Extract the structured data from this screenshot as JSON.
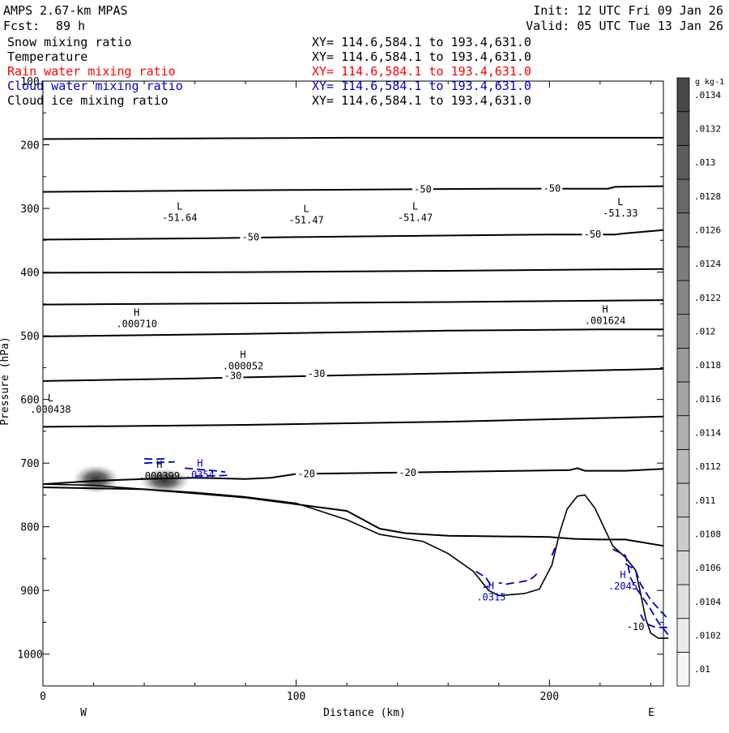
{
  "header": {
    "title": "AMPS 2.67-km MPAS",
    "fcst_label": "Fcst:",
    "fcst_value": "89 h",
    "init": "Init: 12 UTC Fri 09 Jan 26",
    "valid": "Valid: 05 UTC Tue 13 Jan 26"
  },
  "fields": [
    {
      "name": "Snow mixing ratio",
      "xy": "XY= 114.6,584.1 to 193.4,631.0",
      "color": "#000000"
    },
    {
      "name": "Temperature",
      "xy": "XY= 114.6,584.1 to 193.4,631.0",
      "color": "#000000"
    },
    {
      "name": "Rain water mixing ratio",
      "xy": "XY= 114.6,584.1 to 193.4,631.0",
      "color": "#ff0000"
    },
    {
      "name": "Cloud water mixing ratio",
      "xy": "XY= 114.6,584.1 to 193.4,631.0",
      "color": "#0000cc"
    },
    {
      "name": "Cloud ice mixing ratio",
      "xy": "XY= 114.6,584.1 to 193.4,631.0",
      "color": "#000000"
    }
  ],
  "chart_data": {
    "type": "cross-section",
    "xlabel": "Distance (km)",
    "ylabel": "Pressure (hPa)",
    "xlim": [
      0,
      245
    ],
    "ylim": [
      1050,
      100
    ],
    "x_ticks": [
      0,
      100,
      200
    ],
    "y_ticks": [
      100,
      200,
      300,
      400,
      500,
      600,
      700,
      800,
      900,
      1000
    ],
    "x_ends": {
      "left": "W",
      "right": "E"
    },
    "colorbar": {
      "unit": "g kg-1",
      "levels": [
        ".01",
        ".0102",
        ".0104",
        ".0106",
        ".0108",
        ".011",
        ".0112",
        ".0114",
        ".0116",
        ".0118",
        ".012",
        ".0122",
        ".0124",
        ".0126",
        ".0128",
        ".013",
        ".0132",
        ".0134"
      ]
    },
    "temperature_isotherms": [
      {
        "points": [
          [
            0,
            191
          ],
          [
            60,
            190
          ],
          [
            120,
            189
          ],
          [
            180,
            189
          ],
          [
            245,
            189
          ]
        ]
      },
      {
        "points": [
          [
            0,
            274
          ],
          [
            60,
            272
          ],
          [
            100,
            271
          ],
          [
            140,
            270
          ],
          [
            180,
            269
          ],
          [
            223,
            269
          ],
          [
            226,
            266
          ],
          [
            245,
            265
          ]
        ]
      },
      {
        "points": [
          [
            0,
            349
          ],
          [
            60,
            347
          ],
          [
            100,
            345
          ],
          [
            150,
            343
          ],
          [
            200,
            341
          ],
          [
            226,
            341
          ],
          [
            230,
            339
          ],
          [
            245,
            334
          ]
        ]
      },
      {
        "points": [
          [
            0,
            401
          ],
          [
            80,
            400
          ],
          [
            160,
            398
          ],
          [
            245,
            395
          ]
        ]
      },
      {
        "points": [
          [
            0,
            451
          ],
          [
            80,
            449
          ],
          [
            160,
            447
          ],
          [
            245,
            444
          ]
        ]
      },
      {
        "points": [
          [
            0,
            501
          ],
          [
            80,
            497
          ],
          [
            160,
            492
          ],
          [
            220,
            490
          ],
          [
            245,
            490
          ]
        ]
      },
      {
        "points": [
          [
            0,
            571
          ],
          [
            60,
            567
          ],
          [
            120,
            562
          ],
          [
            200,
            556
          ],
          [
            245,
            552
          ]
        ]
      },
      {
        "points": [
          [
            0,
            643
          ],
          [
            80,
            640
          ],
          [
            160,
            635
          ],
          [
            245,
            627
          ]
        ]
      },
      {
        "points": [
          [
            0,
            733
          ],
          [
            20,
            728
          ],
          [
            40,
            725
          ],
          [
            60,
            723
          ],
          [
            80,
            725
          ],
          [
            90,
            723
          ],
          [
            100,
            717
          ],
          [
            140,
            715
          ],
          [
            190,
            712
          ],
          [
            208,
            711
          ],
          [
            211,
            708
          ],
          [
            214,
            712
          ],
          [
            230,
            712
          ],
          [
            245,
            709
          ]
        ]
      },
      {
        "points": [
          [
            0,
            738
          ],
          [
            40,
            741
          ],
          [
            80,
            754
          ],
          [
            120,
            775
          ],
          [
            133,
            803
          ],
          [
            143,
            810
          ],
          [
            160,
            814
          ],
          [
            200,
            816
          ],
          [
            210,
            819
          ],
          [
            220,
            820
          ],
          [
            230,
            820
          ],
          [
            245,
            830
          ]
        ]
      }
    ],
    "isotherm_labels": [
      {
        "text": "-50",
        "x": 150,
        "p": 270
      },
      {
        "text": "-50",
        "x": 201,
        "p": 269
      },
      {
        "text": "-50",
        "x": 82,
        "p": 345
      },
      {
        "text": "-50",
        "x": 217,
        "p": 341
      },
      {
        "text": "-30",
        "x": 75,
        "p": 563
      },
      {
        "text": "-30",
        "x": 108,
        "p": 560
      },
      {
        "text": "-20",
        "x": 104,
        "p": 717
      },
      {
        "text": "-20",
        "x": 144,
        "p": 715
      },
      {
        "text": "-10",
        "x": 234,
        "p": 957
      }
    ],
    "extrema_labels": [
      {
        "kind": "L",
        "value": "-51.64",
        "x": 54,
        "p": 317
      },
      {
        "kind": "L",
        "value": "-51.47",
        "x": 104,
        "p": 321
      },
      {
        "kind": "L",
        "value": "-51.47",
        "x": 147,
        "p": 317
      },
      {
        "kind": "L",
        "value": "-51.33",
        "x": 228,
        "p": 310
      },
      {
        "kind": "H",
        "value": ".000710",
        "x": 37,
        "p": 484
      },
      {
        "kind": "H",
        "value": ".001624",
        "x": 222,
        "p": 479
      },
      {
        "kind": "H",
        "value": ".000052",
        "x": 79,
        "p": 550
      },
      {
        "kind": "L",
        "value": ".000438",
        "x": 3,
        "p": 618
      },
      {
        "kind": "H",
        "value": ".000399",
        "x": 46,
        "p": 723
      },
      {
        "kind": "H",
        "value": ".0354",
        "x": 62,
        "p": 721,
        "color": "#0000cc"
      },
      {
        "kind": "H",
        "value": ".0315",
        "x": 177,
        "p": 913,
        "color": "#0000cc"
      },
      {
        "kind": "H",
        "value": ".2045",
        "x": 229,
        "p": 896,
        "color": "#0000cc"
      }
    ],
    "terrain": [
      [
        0,
        733
      ],
      [
        20,
        735
      ],
      [
        40,
        741
      ],
      [
        60,
        746
      ],
      [
        80,
        753
      ],
      [
        100,
        763
      ],
      [
        120,
        789
      ],
      [
        133,
        812
      ],
      [
        150,
        823
      ],
      [
        160,
        842
      ],
      [
        170,
        870
      ],
      [
        176,
        900
      ],
      [
        180,
        908
      ],
      [
        190,
        905
      ],
      [
        196,
        898
      ],
      [
        201,
        860
      ],
      [
        204,
        810
      ],
      [
        207,
        772
      ],
      [
        211,
        752
      ],
      [
        214,
        750
      ],
      [
        218,
        771
      ],
      [
        222,
        805
      ],
      [
        225,
        830
      ],
      [
        230,
        848
      ],
      [
        234,
        868
      ],
      [
        236,
        905
      ],
      [
        238,
        944
      ],
      [
        240,
        967
      ],
      [
        243,
        975
      ],
      [
        247,
        975
      ]
    ],
    "cloud_water_contours": [
      {
        "points": [
          [
            40,
            693
          ],
          [
            44,
            694
          ],
          [
            48,
            693
          ]
        ]
      },
      {
        "points": [
          [
            40,
            700
          ],
          [
            46,
            699
          ],
          [
            52,
            698
          ]
        ]
      },
      {
        "points": [
          [
            56,
            708
          ],
          [
            62,
            710
          ],
          [
            68,
            712
          ],
          [
            72,
            714
          ]
        ]
      },
      {
        "points": [
          [
            60,
            720
          ],
          [
            68,
            720
          ],
          [
            74,
            719
          ]
        ]
      },
      {
        "points": [
          [
            171,
            870
          ],
          [
            175,
            880
          ],
          [
            177,
            893
          ],
          [
            174,
            895
          ]
        ]
      },
      {
        "points": [
          [
            188,
            887
          ],
          [
            192,
            884
          ],
          [
            194,
            878
          ],
          [
            196,
            870
          ]
        ]
      },
      {
        "points": [
          [
            186,
            888
          ],
          [
            183,
            890
          ],
          [
            180,
            888
          ]
        ]
      },
      {
        "points": [
          [
            201,
            845
          ],
          [
            202,
            835
          ],
          [
            203,
            828
          ]
        ]
      },
      {
        "points": [
          [
            225,
            835
          ],
          [
            230,
            845
          ],
          [
            231,
            860
          ],
          [
            232,
            880
          ],
          [
            234,
            895
          ],
          [
            237,
            912
          ],
          [
            240,
            930
          ],
          [
            243,
            950
          ],
          [
            247,
            970
          ]
        ]
      },
      {
        "points": [
          [
            230,
            858
          ],
          [
            234,
            868
          ],
          [
            236,
            890
          ],
          [
            240,
            915
          ],
          [
            244,
            933
          ],
          [
            247,
            945
          ]
        ]
      },
      {
        "points": [
          [
            236,
            938
          ],
          [
            238,
            952
          ],
          [
            242,
            958
          ],
          [
            247,
            958
          ]
        ]
      }
    ],
    "snow_maxima": [
      {
        "x": 21,
        "p": 725,
        "rx": 13,
        "ry": 16
      },
      {
        "x": 48,
        "p": 728,
        "rx": 14,
        "ry": 14
      }
    ]
  }
}
